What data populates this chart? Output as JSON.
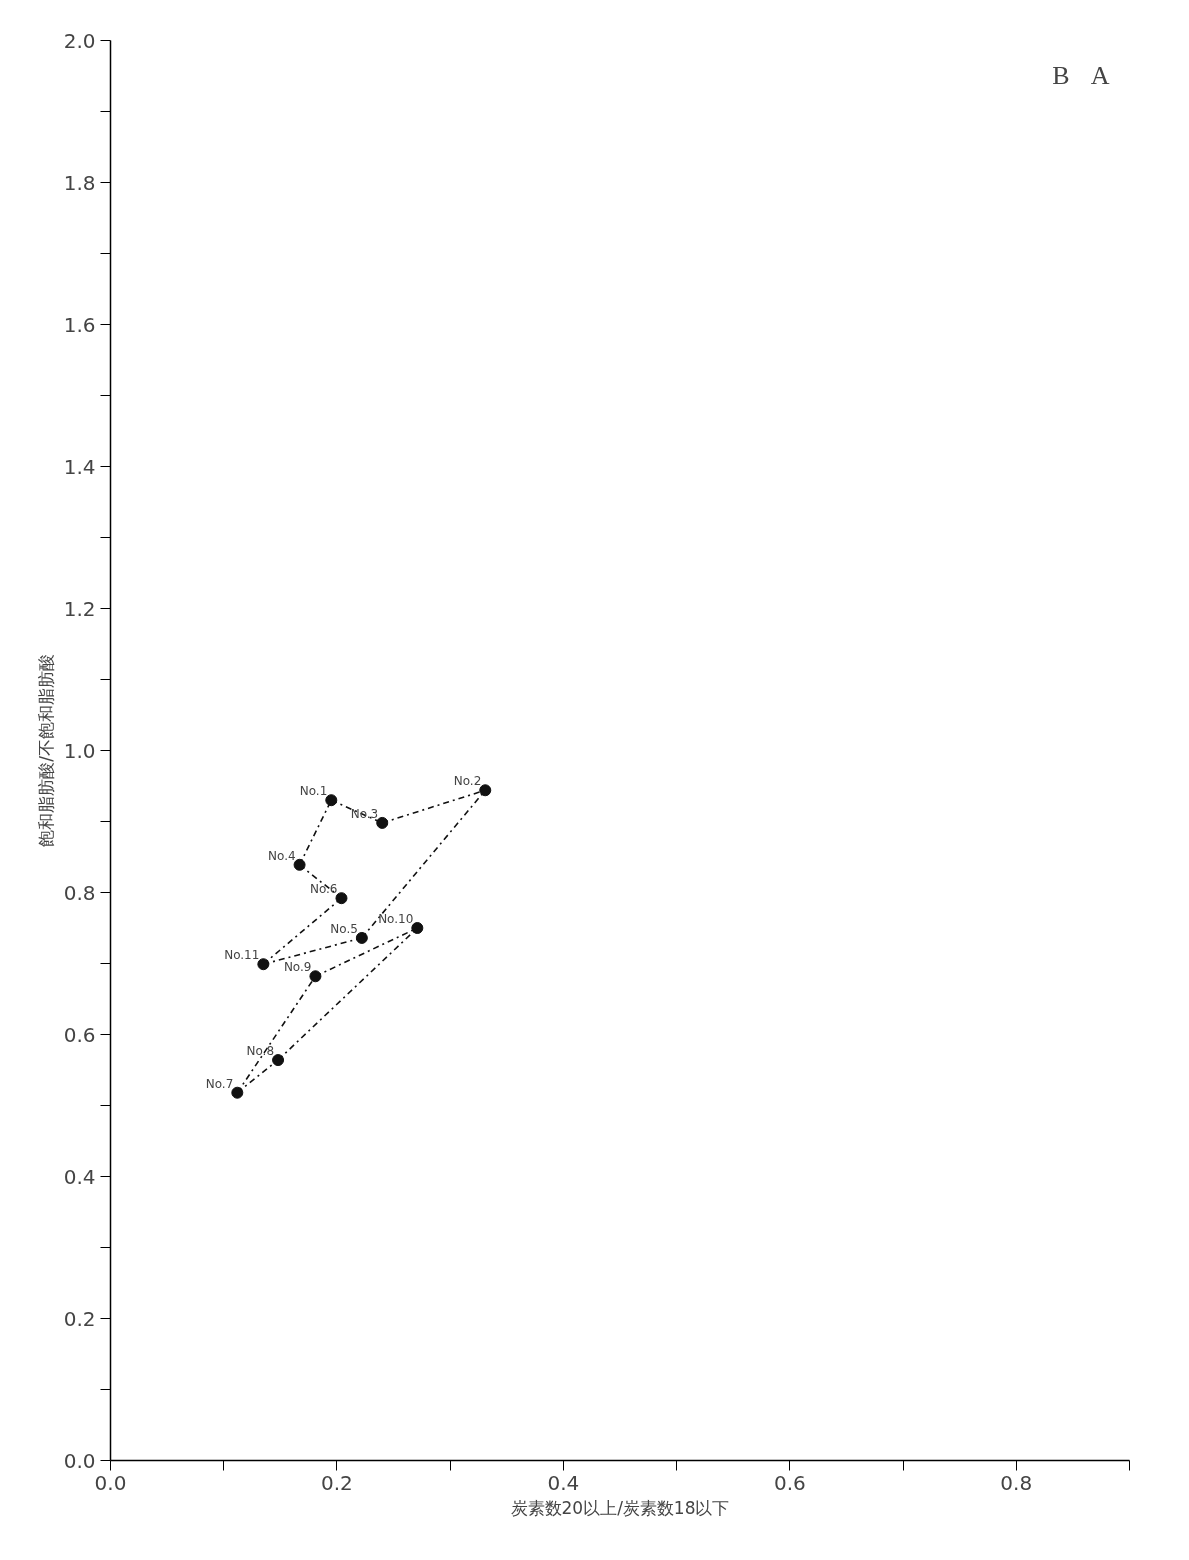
{
  "chart_data": {
    "type": "scatter",
    "xlabel": "炭素数20以上/炭素数18以下",
    "ylabel": "飽和脂肪酸/不飽和脂肪酸",
    "xlim": [
      0,
      0.9
    ],
    "ylim": [
      0,
      2.0
    ],
    "xticks": [
      {
        "value": 0,
        "label": "0.0"
      },
      {
        "value": 0.1,
        "label": null
      },
      {
        "value": 0.2,
        "label": "0.2"
      },
      {
        "value": 0.3,
        "label": null
      },
      {
        "value": 0.4,
        "label": "0.4"
      },
      {
        "value": 0.5,
        "label": null
      },
      {
        "value": 0.6,
        "label": "0.6"
      },
      {
        "value": 0.7,
        "label": null
      },
      {
        "value": 0.8,
        "label": "0.8"
      },
      {
        "value": 0.9,
        "label": null
      }
    ],
    "yticks": [
      {
        "value": 0,
        "label": "0.0"
      },
      {
        "value": 0.1,
        "label": null
      },
      {
        "value": 0.2,
        "label": "0.2"
      },
      {
        "value": 0.3,
        "label": null
      },
      {
        "value": 0.4,
        "label": "0.4"
      },
      {
        "value": 0.5,
        "label": null
      },
      {
        "value": 0.6,
        "label": "0.6"
      },
      {
        "value": 0.7,
        "label": null
      },
      {
        "value": 0.8,
        "label": "0.8"
      },
      {
        "value": 0.9,
        "label": null
      },
      {
        "value": 1.0,
        "label": "1.0"
      },
      {
        "value": 1.1,
        "label": null
      },
      {
        "value": 1.2,
        "label": "1.2"
      },
      {
        "value": 1.3,
        "label": null
      },
      {
        "value": 1.4,
        "label": "1.4"
      },
      {
        "value": 1.5,
        "label": null
      },
      {
        "value": 1.6,
        "label": "1.6"
      },
      {
        "value": 1.7,
        "label": null
      },
      {
        "value": 1.8,
        "label": "1.8"
      },
      {
        "value": 1.9,
        "label": null
      },
      {
        "value": 2.0,
        "label": "2.0"
      }
    ],
    "grid": false,
    "series": [
      {
        "marker": "circle",
        "color": "#111111",
        "x": [
          0.195,
          0.331,
          0.24,
          0.167,
          0.222,
          0.204,
          0.112,
          0.148,
          0.181,
          0.271,
          0.135
        ],
        "values": [
          0.93,
          0.944,
          0.898,
          0.839,
          0.736,
          0.792,
          0.518,
          0.564,
          0.682,
          0.75,
          0.699
        ]
      },
      {
        "type": "line",
        "color": "#111111",
        "line_style": "dashed",
        "x": [
          0.135,
          0.204
        ],
        "values": [
          0.699,
          0.792
        ]
      },
      {
        "type": "line",
        "color": "#111111",
        "line_style": "dashed",
        "x": [
          0.167,
          0.204
        ],
        "values": [
          0.839,
          0.792
        ]
      },
      {
        "type": "line",
        "color": "#111111",
        "line_style": "dashed",
        "x": [
          0.167,
          0.195
        ],
        "values": [
          0.839,
          0.93
        ]
      },
      {
        "type": "line",
        "color": "#111111",
        "line_style": "dashed",
        "x": [
          0.195,
          0.24
        ],
        "values": [
          0.93,
          0.898
        ]
      },
      {
        "type": "line",
        "color": "#111111",
        "line_style": "dashed",
        "x": [
          0.24,
          0.331
        ],
        "values": [
          0.898,
          0.944
        ]
      },
      {
        "type": "line",
        "color": "#111111",
        "line_style": "dashed",
        "x": [
          0.222,
          0.331
        ],
        "values": [
          0.736,
          0.944
        ]
      },
      {
        "type": "line",
        "color": "#111111",
        "line_style": "dashed",
        "x": [
          0.135,
          0.222
        ],
        "values": [
          0.699,
          0.736
        ]
      },
      {
        "type": "line",
        "color": "#111111",
        "line_style": "dashed",
        "x": [
          0.181,
          0.271
        ],
        "values": [
          0.682,
          0.75
        ]
      },
      {
        "type": "line",
        "color": "#111111",
        "line_style": "dashed",
        "x": [
          0.148,
          0.271
        ],
        "values": [
          0.564,
          0.75
        ]
      },
      {
        "type": "line",
        "color": "#111111",
        "line_style": "dashed",
        "x": [
          0.112,
          0.148
        ],
        "values": [
          0.518,
          0.564
        ]
      },
      {
        "type": "line",
        "color": "#111111",
        "line_style": "dashed",
        "x": [
          0.112,
          0.181
        ],
        "values": [
          0.518,
          0.682
        ]
      }
    ],
    "annotations": [
      {
        "text": "No.1",
        "x": 0.195,
        "y": 0.93
      },
      {
        "text": "No.2",
        "x": 0.331,
        "y": 0.944
      },
      {
        "text": "No.3",
        "x": 0.24,
        "y": 0.898
      },
      {
        "text": "No.4",
        "x": 0.167,
        "y": 0.839
      },
      {
        "text": "No.5",
        "x": 0.222,
        "y": 0.736
      },
      {
        "text": "No.6",
        "x": 0.204,
        "y": 0.792
      },
      {
        "text": "No.7",
        "x": 0.112,
        "y": 0.518
      },
      {
        "text": "No.8",
        "x": 0.148,
        "y": 0.564
      },
      {
        "text": "No.9",
        "x": 0.181,
        "y": 0.682
      },
      {
        "text": "No.10",
        "x": 0.271,
        "y": 0.75
      },
      {
        "text": "No.11",
        "x": 0.135,
        "y": 0.699
      },
      "A",
      "B"
    ]
  }
}
